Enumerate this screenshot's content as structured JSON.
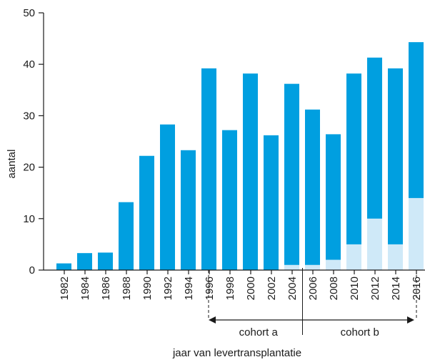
{
  "chart_data": {
    "type": "bar",
    "stacked": true,
    "xlabel": "jaar van levertransplantatie",
    "ylabel": "aantal",
    "ylim": [
      0,
      50
    ],
    "yticks": [
      0,
      10,
      20,
      30,
      40,
      50
    ],
    "categories": [
      "1982",
      "1984",
      "1986",
      "1988",
      "1990",
      "1992",
      "1994",
      "1996",
      "1998",
      "2000",
      "2002",
      "2004",
      "2006",
      "2008",
      "2010",
      "2012",
      "2014",
      "2016"
    ],
    "series": [
      {
        "color": "#cfe9f8",
        "values": [
          0,
          0,
          0,
          0,
          0,
          0,
          0,
          0,
          0,
          0,
          0,
          1,
          1,
          2,
          5,
          10,
          5,
          14
        ]
      },
      {
        "color": "#009fe0",
        "values": [
          1.3,
          3.3,
          3.4,
          13.2,
          22.2,
          28.3,
          23.3,
          39.2,
          27.2,
          38.2,
          26.2,
          35.2,
          30.2,
          24.4,
          33.2,
          31.3,
          34.2,
          30.3
        ]
      }
    ],
    "annotations": [
      {
        "label": "cohort a",
        "from": "1996",
        "to": "2004"
      },
      {
        "label": "cohort b",
        "from": "2006",
        "to": "2016"
      }
    ],
    "grid": false,
    "legend": "none"
  }
}
